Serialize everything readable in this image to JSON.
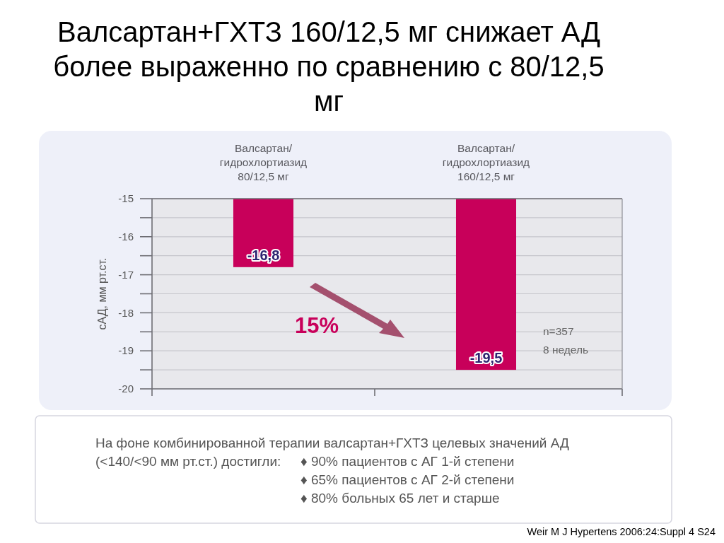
{
  "chart_data": {
    "type": "bar",
    "title": "Валсартан+ГХТЗ 160/12,5 мг снижает АД более выраженно по сравнению с 80/12,5 мг",
    "ylabel": "сАД, мм рт.ст.",
    "categories": [
      "Валсартан/ гидрохлортиазид 80/12,5 мг",
      "Валсартан/ гидрохлортиазид 160/12,5 мг"
    ],
    "values": [
      -16.8,
      -19.5
    ],
    "color": "#c8005a",
    "value_labels": [
      "-16,8",
      "-19,5"
    ],
    "ylim": [
      -20,
      -15
    ],
    "yticks": [
      -20,
      {
        "value": -19.5,
        "label": null
      },
      -19,
      {
        "value": -18.5,
        "label": null
      },
      -18,
      {
        "value": -17.5,
        "label": null
      },
      -17,
      {
        "value": -16.5,
        "label": null
      },
      -16,
      {
        "value": -15.5,
        "label": null
      },
      -15
    ],
    "grid": "y",
    "annotations": [
      "15%",
      "n=357",
      "8 недель",
      "На фоне комбинированной терапии валсартан+ГХТЗ целевых значений АД (<140/<90 мм рт.ст.) достигли:",
      "♦ 90% пациентов с АГ 1-й степени",
      "♦ 65% пациентов с АГ 2-й степени",
      "♦ 80% больных 65 лет и старше",
      "Weir M J Hypertens 2006:24:Suppl 4 S24"
    ]
  }
}
